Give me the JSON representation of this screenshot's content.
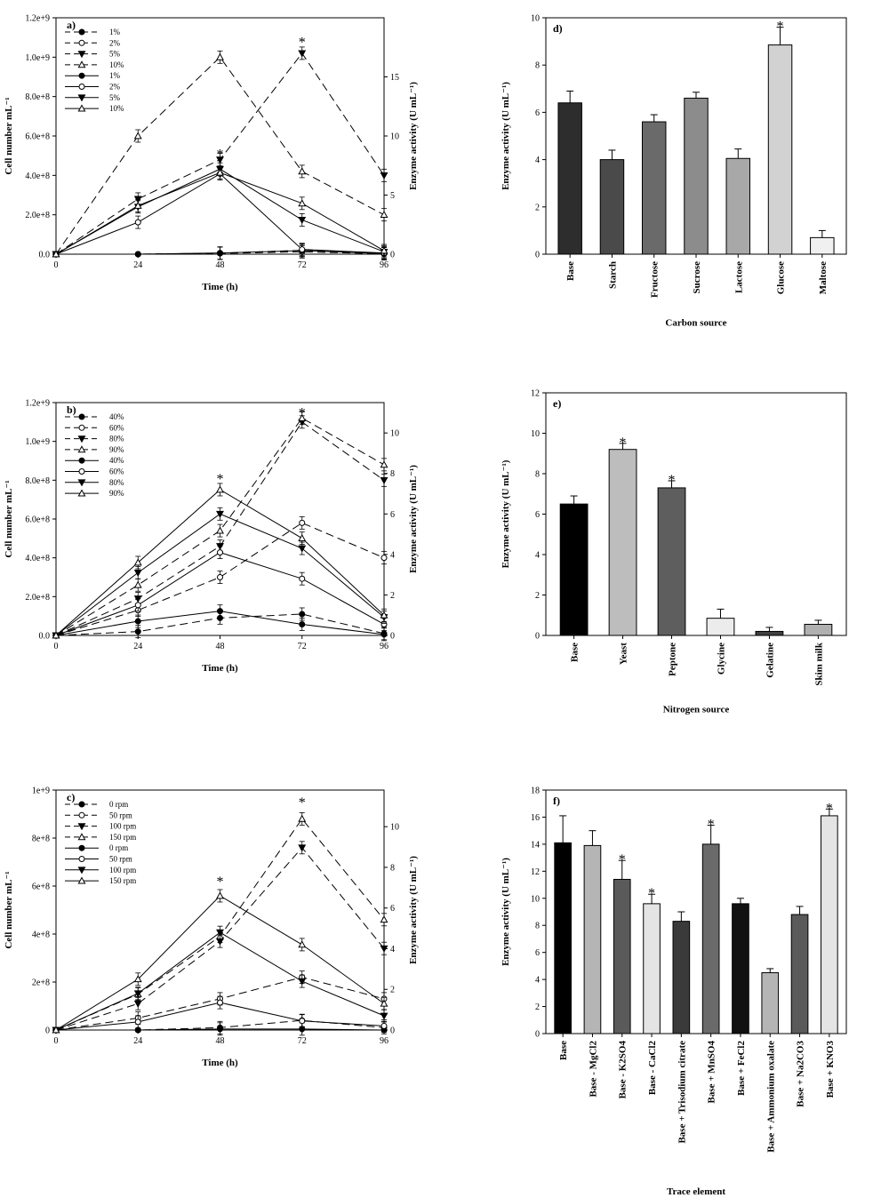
{
  "chart_data": [
    {
      "id": "a",
      "type": "line",
      "panel_label": "a)",
      "xlabel": "Time (h)",
      "ylabel": "Cell number mL⁻¹",
      "y2label": "Enzyme activity (U mL⁻¹)",
      "x": [
        0,
        24,
        48,
        72,
        96
      ],
      "xticks": [
        "0",
        "24",
        "48",
        "72",
        "96"
      ],
      "ylim": [
        0,
        1200000000.0
      ],
      "yticks": [
        "0.0",
        "2.0e+8",
        "4.0e+8",
        "6.0e+8",
        "8.0e+8",
        "1.0e+9",
        "1.2e+9"
      ],
      "y2lim": [
        0,
        20
      ],
      "y2ticks": [
        "0",
        "5",
        "10",
        "15"
      ],
      "series": [
        {
          "name": "1%",
          "axis": "left",
          "style": "dashed",
          "marker": "filled-circle",
          "values": [
            0,
            0,
            5000000.0,
            20000000.0,
            3000000.0
          ]
        },
        {
          "name": "2%",
          "axis": "left",
          "style": "dashed",
          "marker": "open-circle",
          "values": [
            0,
            0,
            4000000.0,
            12000000.0,
            2000000.0
          ]
        },
        {
          "name": "5%",
          "axis": "left",
          "style": "dashed",
          "marker": "filled-triangle",
          "values": [
            0,
            280000000.0,
            480000000.0,
            1020000000.0,
            400000000.0
          ]
        },
        {
          "name": "10%",
          "axis": "left",
          "style": "dashed",
          "marker": "open-triangle",
          "values": [
            0,
            600000000.0,
            1000000000.0,
            420000000.0,
            200000000.0
          ]
        },
        {
          "name": "1%",
          "axis": "right",
          "style": "solid",
          "marker": "filled-circle",
          "values": [
            0,
            0,
            0.1,
            0.3,
            0.05
          ]
        },
        {
          "name": "2%",
          "axis": "right",
          "style": "solid",
          "marker": "open-circle",
          "values": [
            0,
            2.7,
            6.8,
            0.4,
            0.1
          ]
        },
        {
          "name": "5%",
          "axis": "right",
          "style": "solid",
          "marker": "filled-triangle",
          "values": [
            0,
            4.0,
            7.2,
            2.9,
            0.2
          ]
        },
        {
          "name": "10%",
          "axis": "right",
          "style": "solid",
          "marker": "open-triangle",
          "values": [
            0,
            4.1,
            6.9,
            4.3,
            0.3
          ]
        }
      ],
      "stars": [
        {
          "x": 48,
          "y": 520000000.0
        },
        {
          "x": 72,
          "y": 1090000000.0
        }
      ]
    },
    {
      "id": "b",
      "type": "line",
      "panel_label": "b)",
      "xlabel": "Time (h)",
      "ylabel": "Cell number mL⁻¹",
      "y2label": "Enzyme activity (U mL⁻¹)",
      "x": [
        0,
        24,
        48,
        72,
        96
      ],
      "xticks": [
        "0",
        "24",
        "48",
        "72",
        "96"
      ],
      "ylim": [
        0,
        1200000000.0
      ],
      "yticks": [
        "0.0",
        "2.0e+8",
        "4.0e+8",
        "6.0e+8",
        "8.0e+8",
        "1.0e+9",
        "1.2e+9"
      ],
      "y2lim": [
        0,
        11.5
      ],
      "y2ticks": [
        "0",
        "2",
        "4",
        "6",
        "8",
        "10"
      ],
      "series": [
        {
          "name": "40%",
          "axis": "left",
          "style": "dashed",
          "marker": "filled-circle",
          "values": [
            0,
            20000000.0,
            90000000.0,
            110000000.0,
            10000000.0
          ]
        },
        {
          "name": "60%",
          "axis": "left",
          "style": "dashed",
          "marker": "open-circle",
          "values": [
            0,
            130000000.0,
            300000000.0,
            580000000.0,
            400000000.0
          ]
        },
        {
          "name": "80%",
          "axis": "left",
          "style": "dashed",
          "marker": "filled-triangle",
          "values": [
            0,
            190000000.0,
            460000000.0,
            1100000000.0,
            800000000.0
          ]
        },
        {
          "name": "90%",
          "axis": "left",
          "style": "dashed",
          "marker": "open-triangle",
          "values": [
            0,
            260000000.0,
            540000000.0,
            1120000000.0,
            880000000.0
          ]
        },
        {
          "name": "40%",
          "axis": "right",
          "style": "solid",
          "marker": "filled-circle",
          "values": [
            0,
            0.7,
            1.2,
            0.55,
            0.05
          ]
        },
        {
          "name": "60%",
          "axis": "right",
          "style": "solid",
          "marker": "open-circle",
          "values": [
            0,
            1.5,
            4.1,
            2.8,
            0.55
          ]
        },
        {
          "name": "80%",
          "axis": "right",
          "style": "solid",
          "marker": "filled-triangle",
          "values": [
            0,
            3.1,
            6.0,
            4.3,
            0.9
          ]
        },
        {
          "name": "90%",
          "axis": "right",
          "style": "solid",
          "marker": "open-triangle",
          "values": [
            0,
            3.6,
            7.2,
            4.8,
            1.0
          ]
        }
      ],
      "stars": [
        {
          "x": 48,
          "y": 820000000.0
        },
        {
          "x": 72,
          "y": 1160000000.0
        }
      ]
    },
    {
      "id": "c",
      "type": "line",
      "panel_label": "c)",
      "xlabel": "Time (h)",
      "ylabel": "Cell number mL⁻¹",
      "y2label": "Enzyme activity (U mL⁻¹)",
      "x": [
        0,
        24,
        48,
        72,
        96
      ],
      "xticks": [
        "0",
        "24",
        "48",
        "72",
        "96"
      ],
      "ylim": [
        0,
        1000000000.0
      ],
      "yticks": [
        "0",
        "2e+8",
        "4e+8",
        "6e+8",
        "8e+8",
        "1e+9"
      ],
      "y2lim": [
        0,
        11.8
      ],
      "y2ticks": [
        "0",
        "2",
        "4",
        "6",
        "8",
        "10"
      ],
      "series": [
        {
          "name": "0 rpm",
          "axis": "left",
          "style": "dashed",
          "marker": "filled-circle",
          "values": [
            0,
            0,
            10000000.0,
            40000000.0,
            10000000.0
          ]
        },
        {
          "name": "50 rpm",
          "axis": "left",
          "style": "dashed",
          "marker": "open-circle",
          "values": [
            0,
            50000000.0,
            130000000.0,
            220000000.0,
            130000000.0
          ]
        },
        {
          "name": "100 rpm",
          "axis": "left",
          "style": "dashed",
          "marker": "filled-triangle",
          "values": [
            0,
            110000000.0,
            370000000.0,
            760000000.0,
            340000000.0
          ]
        },
        {
          "name": "150 rpm",
          "axis": "left",
          "style": "dashed",
          "marker": "open-triangle",
          "values": [
            0,
            150000000.0,
            390000000.0,
            880000000.0,
            460000000.0
          ]
        },
        {
          "name": "0 rpm",
          "axis": "right",
          "style": "solid",
          "marker": "filled-circle",
          "values": [
            0,
            0,
            0.05,
            0.05,
            0
          ]
        },
        {
          "name": "50 rpm",
          "axis": "right",
          "style": "solid",
          "marker": "open-circle",
          "values": [
            0,
            0.4,
            1.35,
            0.45,
            0.2
          ]
        },
        {
          "name": "100 rpm",
          "axis": "right",
          "style": "solid",
          "marker": "filled-triangle",
          "values": [
            0,
            1.8,
            4.8,
            2.4,
            0.7
          ]
        },
        {
          "name": "150 rpm",
          "axis": "right",
          "style": "solid",
          "marker": "open-triangle",
          "values": [
            0,
            2.5,
            6.6,
            4.2,
            1.3
          ]
        }
      ],
      "stars": [
        {
          "x": 48,
          "y": 630000000.0
        },
        {
          "x": 72,
          "y": 960000000.0
        }
      ]
    },
    {
      "id": "d",
      "type": "bar",
      "panel_label": "d)",
      "xlabel": "Carbon source",
      "ylabel": "Enzyme activity (U mL⁻¹)",
      "ylim": [
        0,
        10
      ],
      "yticks": [
        "0",
        "2",
        "4",
        "6",
        "8",
        "10"
      ],
      "categories": [
        "Base",
        "Starch",
        "Fructose",
        "Sucrose",
        "Lactose",
        "Glucose",
        "Maltose"
      ],
      "values": [
        6.4,
        4.0,
        5.6,
        6.6,
        4.05,
        8.85,
        0.7
      ],
      "errors": [
        0.5,
        0.4,
        0.3,
        0.25,
        0.4,
        0.75,
        0.3
      ],
      "colors": [
        "#2d2d2d",
        "#4a4a4a",
        "#6a6a6a",
        "#8c8c8c",
        "#a8a8a8",
        "#d2d2d2",
        "#f0f0f0"
      ],
      "stars": [
        "Glucose"
      ]
    },
    {
      "id": "e",
      "type": "bar",
      "panel_label": "e)",
      "xlabel": "Nitrogen source",
      "ylabel": "Enzyme activity (U mL⁻¹)",
      "ylim": [
        0,
        12
      ],
      "yticks": [
        "0",
        "2",
        "4",
        "6",
        "8",
        "10",
        "12"
      ],
      "categories": [
        "Base",
        "Yeast",
        "Peptone",
        "Glycine",
        "Gelatine",
        "Skim milk"
      ],
      "values": [
        6.5,
        9.2,
        7.3,
        0.85,
        0.2,
        0.55
      ],
      "errors": [
        0.4,
        0.3,
        0.35,
        0.45,
        0.2,
        0.2
      ],
      "colors": [
        "#000000",
        "#bdbdbd",
        "#5e5e5e",
        "#ececec",
        "#404040",
        "#b0b0b0"
      ],
      "stars": [
        "Yeast",
        "Peptone"
      ]
    },
    {
      "id": "f",
      "type": "bar",
      "panel_label": "f)",
      "xlabel": "Trace element",
      "ylabel": "Enzyme activity (U mL⁻¹)",
      "ylim": [
        0,
        18
      ],
      "yticks": [
        "0",
        "2",
        "4",
        "6",
        "8",
        "10",
        "12",
        "14",
        "16",
        "18"
      ],
      "categories": [
        "Base",
        "Base - MgCl2",
        "Base - K2SO4",
        "Base - CaCl2",
        "Base + Trisodium citrate",
        "Base + MnSO4",
        "Base + FeCl2",
        "Base + Ammonium oxalate",
        "Base + Na2CO3",
        "Base + KNO3"
      ],
      "values": [
        14.1,
        13.9,
        11.4,
        9.6,
        8.3,
        14.0,
        9.6,
        4.5,
        8.8,
        16.1
      ],
      "errors": [
        2.0,
        1.1,
        1.4,
        0.7,
        0.7,
        1.4,
        0.4,
        0.3,
        0.6,
        0.5
      ],
      "colors": [
        "#000000",
        "#b5b5b5",
        "#5a5a5a",
        "#e4e4e4",
        "#3a3a3a",
        "#6a6a6a",
        "#111111",
        "#b5b5b5",
        "#5a5a5a",
        "#e4e4e4"
      ],
      "stars": [
        "Base - K2SO4",
        "Base - CaCl2",
        "Base + MnSO4",
        "Base + KNO3"
      ]
    }
  ]
}
